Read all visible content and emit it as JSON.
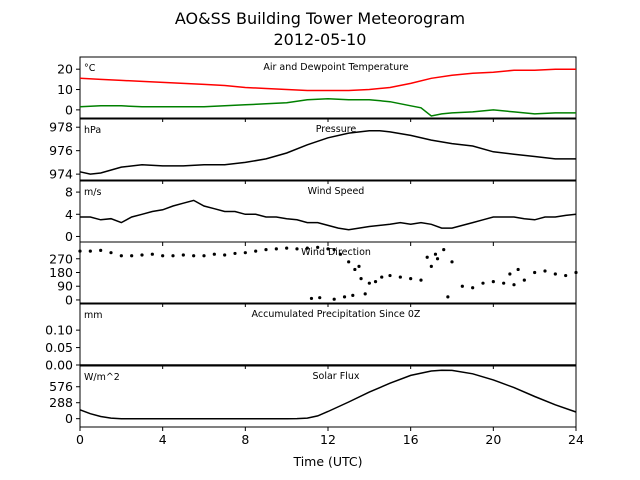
{
  "title": "AO&SS Building Tower Meteorogram",
  "subtitle": "2012-05-10",
  "x_axis": {
    "label": "Time (UTC)",
    "range": [
      0,
      24
    ],
    "ticks": [
      "0",
      "4",
      "8",
      "12",
      "16",
      "20",
      "24"
    ]
  },
  "colors": {
    "temperature": "#ff0000",
    "dewpoint": "#008000",
    "default": "#000000"
  },
  "chart_data": [
    {
      "type": "line",
      "panel_title": "Air and Dewpoint Temperature",
      "unit": "°C",
      "xlim": [
        0,
        24
      ],
      "ylim": [
        -4,
        26
      ],
      "yticks": [
        0,
        10,
        20
      ],
      "series": [
        {
          "color": "temperature",
          "x": [
            0,
            1,
            2,
            3,
            4,
            5,
            6,
            7,
            8,
            9,
            10,
            11,
            12,
            13,
            14,
            15,
            16,
            17,
            18,
            19,
            20,
            21,
            22,
            23,
            24
          ],
          "y": [
            15.5,
            15,
            14.5,
            14,
            13.5,
            13,
            12.5,
            12,
            11,
            10.5,
            10,
            9.5,
            9.5,
            9.5,
            10,
            11,
            13,
            15.5,
            17,
            18,
            18.5,
            19.5,
            19.5,
            20,
            20
          ]
        },
        {
          "color": "dewpoint",
          "x": [
            0,
            1,
            2,
            3,
            4,
            5,
            6,
            7,
            8,
            9,
            10,
            11,
            12,
            13,
            14,
            15,
            16,
            16.5,
            17,
            17.5,
            18,
            19,
            20,
            21,
            22,
            23,
            24
          ],
          "y": [
            1.5,
            2,
            2,
            1.5,
            1.5,
            1.5,
            1.5,
            2,
            2.5,
            3,
            3.5,
            5,
            5.5,
            5,
            5,
            4,
            2,
            1,
            -3,
            -2,
            -1.5,
            -1,
            0,
            -1,
            -2,
            -1.5,
            -1.5
          ]
        }
      ]
    },
    {
      "type": "line",
      "panel_title": "Pressure",
      "unit": "hPa",
      "xlim": [
        0,
        24
      ],
      "ylim": [
        973.5,
        978.7
      ],
      "yticks": [
        974,
        976,
        978
      ],
      "series": [
        {
          "color": "default",
          "x": [
            0,
            0.5,
            1,
            2,
            3,
            4,
            5,
            6,
            7,
            8,
            9,
            10,
            11,
            12,
            13,
            14,
            14.5,
            15,
            16,
            17,
            18,
            19,
            20,
            21,
            22,
            23,
            24
          ],
          "y": [
            974.2,
            974,
            974.1,
            974.6,
            974.8,
            974.7,
            974.7,
            974.8,
            974.8,
            975.0,
            975.3,
            975.8,
            976.5,
            977.1,
            977.5,
            977.7,
            977.7,
            977.6,
            977.3,
            976.9,
            976.6,
            976.4,
            975.9,
            975.7,
            975.5,
            975.3,
            975.3
          ]
        }
      ]
    },
    {
      "type": "line",
      "panel_title": "Wind Speed",
      "unit": "m/s",
      "xlim": [
        0,
        24
      ],
      "ylim": [
        -1,
        10
      ],
      "yticks": [
        0,
        4,
        8
      ],
      "series": [
        {
          "color": "default",
          "x": [
            0,
            0.5,
            1,
            1.5,
            2,
            2.5,
            3,
            3.5,
            4,
            4.5,
            5,
            5.5,
            6,
            6.5,
            7,
            7.5,
            8,
            8.5,
            9,
            9.5,
            10,
            10.5,
            11,
            11.5,
            12,
            12.5,
            13,
            13.5,
            14,
            14.5,
            15,
            15.5,
            16,
            16.5,
            17,
            17.5,
            18,
            18.5,
            19,
            19.5,
            20,
            20.5,
            21,
            21.5,
            22,
            22.5,
            23,
            23.5,
            24
          ],
          "y": [
            3.5,
            3.5,
            3,
            3.2,
            2.5,
            3.5,
            4,
            4.5,
            4.8,
            5.5,
            6,
            6.5,
            5.5,
            5,
            4.5,
            4.5,
            4,
            4,
            3.5,
            3.5,
            3.2,
            3,
            2.5,
            2.5,
            2,
            1.5,
            1.2,
            1.5,
            1.8,
            2,
            2.2,
            2.5,
            2.2,
            2.5,
            2.2,
            1.5,
            1.5,
            2,
            2.5,
            3,
            3.5,
            3.5,
            3.5,
            3.2,
            3,
            3.5,
            3.5,
            3.8,
            4
          ]
        }
      ]
    },
    {
      "type": "scatter",
      "panel_title": "Wind Direction",
      "unit": "",
      "xlim": [
        0,
        24
      ],
      "ylim": [
        -20,
        380
      ],
      "yticks": [
        0,
        90,
        180,
        270
      ],
      "series": [
        {
          "color": "default",
          "x": [
            0,
            0.5,
            1,
            1.5,
            2,
            2.5,
            3,
            3.5,
            4,
            4.5,
            5,
            5.5,
            6,
            6.5,
            7,
            7.5,
            8,
            8.5,
            9,
            9.5,
            10,
            10.5,
            11,
            11.5,
            12,
            12.3,
            12.6,
            13,
            13.3,
            13.6,
            14,
            14.3,
            14.6,
            15,
            15.5,
            16,
            16.5,
            17,
            17.3,
            17.6,
            18,
            18.5,
            19,
            19.5,
            20,
            20.5,
            21,
            21.5,
            22,
            22.5,
            23,
            23.5,
            24,
            11.2,
            11.6,
            12.3,
            12.8,
            13.2,
            13.8,
            16.8,
            17.2,
            17.8,
            21.2,
            20.8,
            13.5
          ],
          "y": [
            320,
            320,
            325,
            310,
            290,
            290,
            295,
            300,
            290,
            290,
            295,
            290,
            290,
            300,
            295,
            305,
            310,
            320,
            330,
            335,
            340,
            335,
            340,
            345,
            335,
            330,
            300,
            250,
            200,
            140,
            110,
            120,
            150,
            160,
            150,
            140,
            130,
            220,
            270,
            330,
            250,
            90,
            80,
            110,
            120,
            110,
            100,
            130,
            180,
            190,
            170,
            160,
            180,
            10,
            15,
            5,
            20,
            30,
            40,
            280,
            300,
            20,
            200,
            170,
            220
          ]
        }
      ]
    },
    {
      "type": "line",
      "panel_title": "Accumulated Precipitation Since 0Z",
      "unit": "mm",
      "xlim": [
        0,
        24
      ],
      "ylim": [
        0,
        0.175
      ],
      "yticks": [
        0.0,
        0.05,
        0.1
      ],
      "ytick_labels": [
        "0.00",
        "0.05",
        "0.10"
      ],
      "series": [
        {
          "color": "default",
          "x": [
            0,
            24
          ],
          "y": [
            0,
            0
          ]
        }
      ]
    },
    {
      "type": "line",
      "panel_title": "Solar Flux",
      "unit": "W/m^2",
      "xlim": [
        0,
        24
      ],
      "ylim": [
        -150,
        950
      ],
      "yticks": [
        0,
        288,
        576
      ],
      "series": [
        {
          "color": "default",
          "x": [
            0,
            0.5,
            1,
            1.5,
            2,
            3,
            4,
            5,
            6,
            7,
            8,
            9,
            10,
            10.5,
            11,
            11.5,
            12,
            13,
            14,
            15,
            16,
            17,
            17.5,
            18,
            19,
            20,
            21,
            22,
            23,
            24
          ],
          "y": [
            160,
            90,
            40,
            10,
            0,
            0,
            0,
            0,
            0,
            0,
            0,
            0,
            0,
            2,
            10,
            50,
            130,
            300,
            480,
            640,
            780,
            860,
            875,
            870,
            810,
            700,
            560,
            400,
            250,
            120
          ]
        }
      ]
    }
  ]
}
